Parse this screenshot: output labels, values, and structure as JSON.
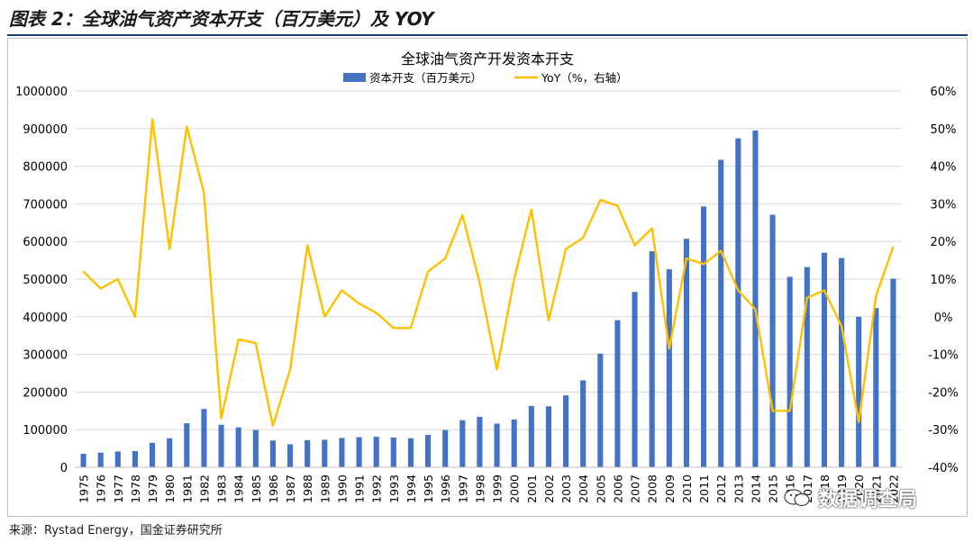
{
  "figure_title": "图表 2：全球油气资产资本开支（百万美元）及 YOY",
  "source": "来源：Rystad Energy，国金证券研究所",
  "watermark": "数据调查局",
  "colors": {
    "bar": "#4472C4",
    "line": "#FFC000",
    "grid": "#d9d9d9",
    "rule": "#1f3d7a"
  },
  "chart_data": {
    "type": "bar",
    "title": "全球油气资产开发资本开支",
    "legend_position": "top",
    "grid": true,
    "categories": [
      "1975",
      "1976",
      "1977",
      "1978",
      "1979",
      "1980",
      "1981",
      "1982",
      "1983",
      "1984",
      "1985",
      "1986",
      "1987",
      "1988",
      "1989",
      "1990",
      "1991",
      "1992",
      "1993",
      "1994",
      "1995",
      "1996",
      "1997",
      "1998",
      "1999",
      "2000",
      "2001",
      "2002",
      "2003",
      "2004",
      "2005",
      "2006",
      "2007",
      "2008",
      "2009",
      "2010",
      "2011",
      "2012",
      "2013",
      "2014",
      "2015",
      "2016",
      "2017",
      "2018",
      "2019",
      "2020",
      "2021",
      "2022"
    ],
    "series": [
      {
        "name": "资本开支（百万美元）",
        "type": "bar",
        "axis": "left",
        "values": [
          36000,
          39000,
          42000,
          43000,
          65000,
          77000,
          117000,
          155000,
          113000,
          106000,
          99000,
          71000,
          61000,
          72000,
          73000,
          78000,
          80000,
          81000,
          79000,
          77000,
          86000,
          99000,
          125000,
          134000,
          116000,
          127000,
          163000,
          162000,
          191000,
          231000,
          302000,
          391000,
          466000,
          574000,
          526000,
          607000,
          693000,
          817000,
          874000,
          895000,
          671000,
          506000,
          532000,
          570000,
          556000,
          400000,
          423000,
          501000
        ]
      },
      {
        "name": "YoY（%，右轴）",
        "type": "line",
        "axis": "right",
        "values": [
          12,
          7.5,
          10,
          0,
          52.5,
          18,
          50.5,
          33,
          -27,
          -6,
          -7,
          -29,
          -14,
          19,
          0,
          7,
          3.5,
          1,
          -3,
          -3,
          12,
          15.5,
          27,
          9,
          -14,
          10,
          28.5,
          -1,
          18,
          21,
          31,
          29.5,
          19,
          23.5,
          -8.5,
          15.5,
          14,
          17.5,
          7,
          2,
          -25,
          -25,
          5,
          7,
          -2.5,
          -28,
          5.5,
          18.5
        ]
      }
    ],
    "y_left": {
      "min": 0,
      "max": 1000000,
      "ticks": [
        "0",
        "100000",
        "200000",
        "300000",
        "400000",
        "500000",
        "600000",
        "700000",
        "800000",
        "900000",
        "1000000"
      ]
    },
    "y_right": {
      "min": -40,
      "max": 60,
      "ticks": [
        "-40%",
        "-30%",
        "-20%",
        "-10%",
        "0%",
        "10%",
        "20%",
        "30%",
        "40%",
        "50%",
        "60%"
      ]
    }
  }
}
